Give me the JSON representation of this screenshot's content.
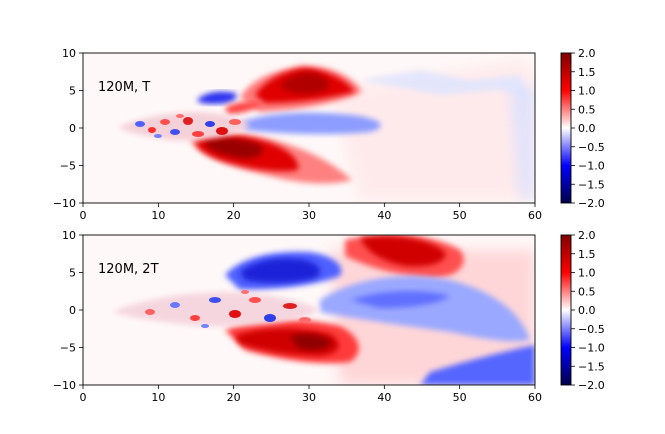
{
  "chart_data": [
    {
      "type": "heatmap",
      "panel_label": "120M, T",
      "xlim": [
        0,
        60
      ],
      "ylim": [
        -10,
        10
      ],
      "xticks": [
        "0",
        "10",
        "20",
        "30",
        "40",
        "50",
        "60"
      ],
      "yticks": [
        "10",
        "5",
        "0",
        "−5",
        "−10"
      ],
      "colorbar": {
        "colormap": "seismic",
        "range": [
          -2.0,
          2.0
        ],
        "ticks": [
          "2.0",
          "1.5",
          "1.0",
          "0.5",
          "0.0",
          "−0.5",
          "−1.0",
          "−1.5",
          "−2.0"
        ],
        "low_color": "#00004c",
        "mid_color": "#ffffff",
        "high_color": "#800000"
      },
      "features": [
        {
          "region": "upper lobe",
          "x_range": [
            22,
            37
          ],
          "y_range": [
            3,
            8
          ],
          "value": 1.9
        },
        {
          "region": "lower lobe",
          "x_range": [
            14,
            28
          ],
          "y_range": [
            -8,
            -1
          ],
          "value": 1.9
        },
        {
          "region": "upper blue patch",
          "x_range": [
            15,
            22
          ],
          "y_range": [
            3,
            5
          ],
          "value": -1.4
        },
        {
          "region": "central blue streak",
          "x_range": [
            22,
            44
          ],
          "y_range": [
            -1,
            1.5
          ],
          "value": -0.6
        },
        {
          "region": "turbulent core",
          "x_range": [
            4,
            22
          ],
          "y_range": [
            -3,
            3
          ],
          "value": 0.0
        }
      ]
    },
    {
      "type": "heatmap",
      "panel_label": "120M, 2T",
      "xlim": [
        0,
        60
      ],
      "ylim": [
        -10,
        10
      ],
      "xticks": [
        "0",
        "10",
        "20",
        "30",
        "40",
        "50",
        "60"
      ],
      "yticks": [
        "10",
        "5",
        "0",
        "−5",
        "−10"
      ],
      "colorbar": {
        "colormap": "seismic",
        "range": [
          -2.0,
          2.0
        ],
        "ticks": [
          "2.0",
          "1.5",
          "1.0",
          "0.5",
          "0.0",
          "−0.5",
          "−1.0",
          "−1.5",
          "−2.0"
        ],
        "low_color": "#00004c",
        "mid_color": "#ffffff",
        "high_color": "#800000"
      },
      "features": [
        {
          "region": "upper blue lobe",
          "x_range": [
            20,
            34
          ],
          "y_range": [
            3,
            8
          ],
          "value": -1.8
        },
        {
          "region": "lower red lobe",
          "x_range": [
            20,
            38
          ],
          "y_range": [
            -9,
            -2
          ],
          "value": 1.9
        },
        {
          "region": "top red plume",
          "x_range": [
            36,
            52
          ],
          "y_range": [
            4,
            10
          ],
          "value": 1.8
        },
        {
          "region": "central blue band",
          "x_range": [
            30,
            58
          ],
          "y_range": [
            -3,
            4
          ],
          "value": -0.7
        },
        {
          "region": "lower right blue",
          "x_range": [
            44,
            60
          ],
          "y_range": [
            -10,
            -5
          ],
          "value": -1.0
        }
      ]
    }
  ]
}
